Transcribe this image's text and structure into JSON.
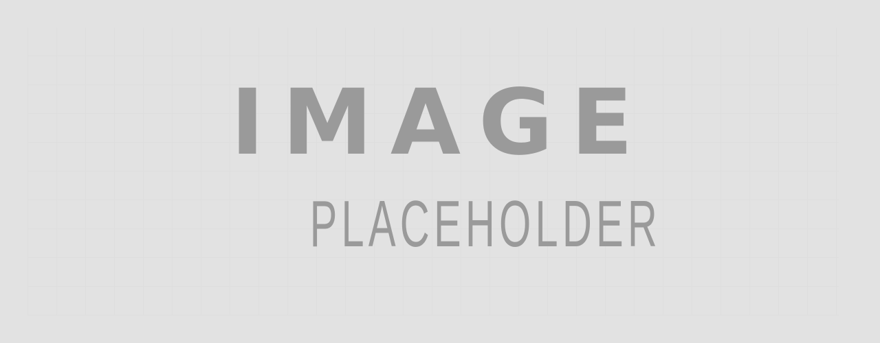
{
  "placeholder": {
    "line1": "IMAGE",
    "line2": "PLACEHOLDER"
  },
  "colors": {
    "background": "#e2e2e2",
    "text": "#9a9a9a"
  }
}
